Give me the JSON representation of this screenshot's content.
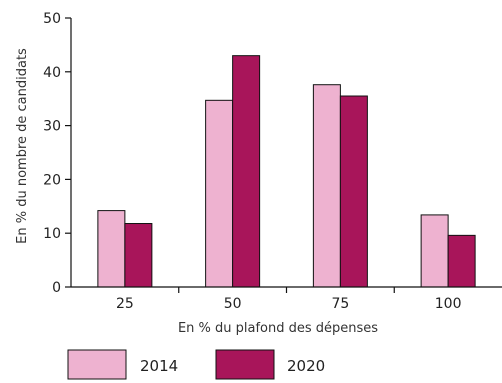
{
  "chart_data": {
    "type": "bar",
    "categories": [
      "25",
      "50",
      "75",
      "100"
    ],
    "series": [
      {
        "name": "2014",
        "values": [
          14.2,
          34.7,
          37.6,
          13.4
        ],
        "color": "#eeb2d0"
      },
      {
        "name": "2020",
        "values": [
          11.8,
          43.0,
          35.5,
          9.6
        ],
        "color": "#a8155a"
      }
    ],
    "ylim": [
      0,
      50
    ],
    "yticks": [
      0,
      10,
      20,
      30,
      40,
      50
    ],
    "xlabel": "En % du plafond des dépenses",
    "ylabel": "En % du nombre de candidats",
    "legend_position": "bottom-left",
    "grid": false,
    "bar_stroke": "#111111"
  }
}
